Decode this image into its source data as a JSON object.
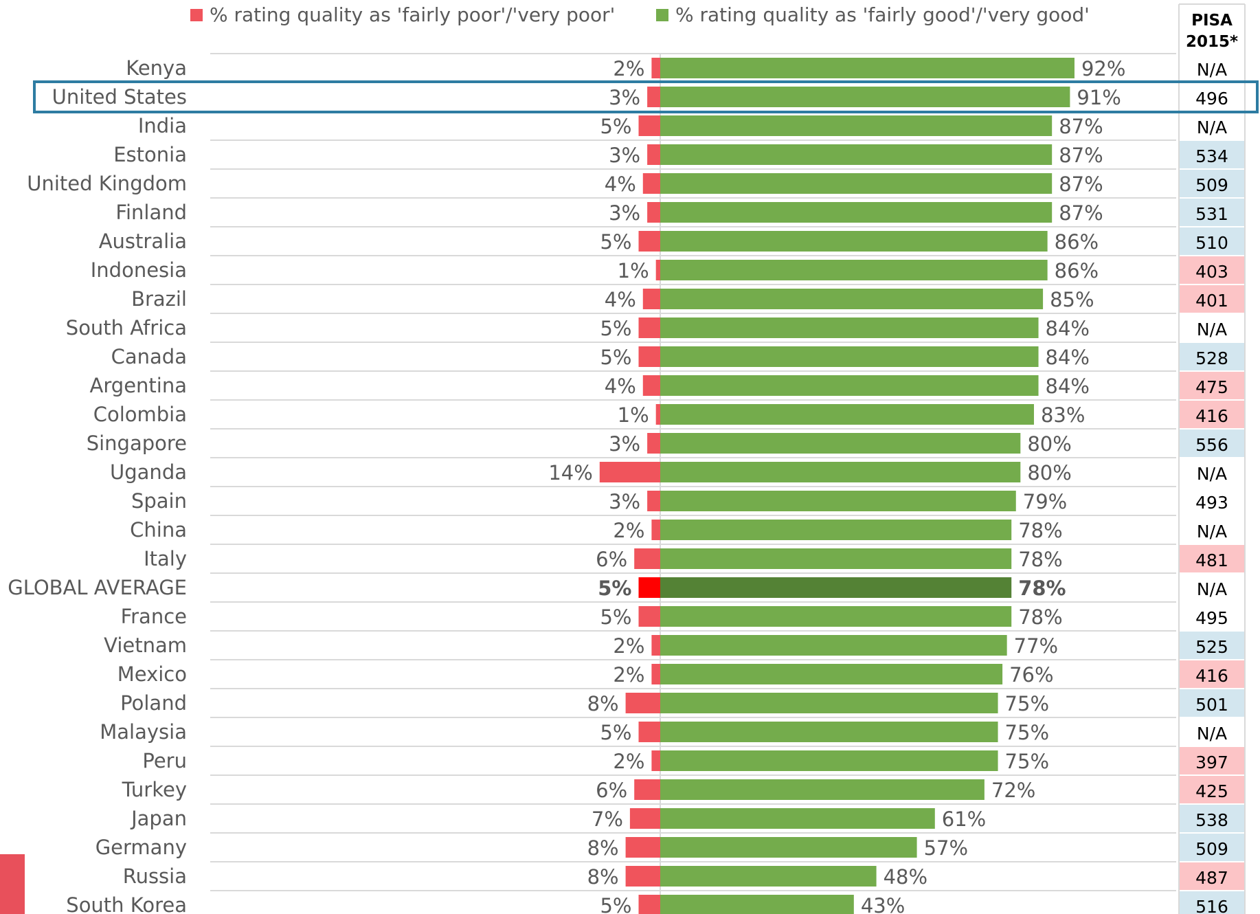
{
  "chart_data": {
    "type": "bar",
    "legend": {
      "position": "top",
      "poor_label": "% rating quality as 'fairly poor'/'very poor'",
      "good_label": "% rating quality as 'fairly good'/'very good'"
    },
    "pisa_header": [
      "PISA",
      "2015*"
    ],
    "highlighted_category": "United States",
    "bold_category": "GLOBAL AVERAGE",
    "categories": [
      "Kenya",
      "United States",
      "India",
      "Estonia",
      "United Kingdom",
      "Finland",
      "Australia",
      "Indonesia",
      "Brazil",
      "South Africa",
      "Canada",
      "Argentina",
      "Colombia",
      "Singapore",
      "Uganda",
      "Spain",
      "China",
      "Italy",
      "GLOBAL AVERAGE",
      "France",
      "Vietnam",
      "Mexico",
      "Poland",
      "Malaysia",
      "Peru",
      "Turkey",
      "Japan",
      "Germany",
      "Russia",
      "South Korea"
    ],
    "series": [
      {
        "name": "% rating quality as 'fairly poor'/'very poor'",
        "values": [
          2,
          3,
          5,
          3,
          4,
          3,
          5,
          1,
          4,
          5,
          5,
          4,
          1,
          3,
          14,
          3,
          2,
          6,
          5,
          5,
          2,
          2,
          8,
          5,
          2,
          6,
          7,
          8,
          8,
          5
        ]
      },
      {
        "name": "% rating quality as 'fairly good'/'very good'",
        "values": [
          92,
          91,
          87,
          87,
          87,
          87,
          86,
          86,
          85,
          84,
          84,
          84,
          83,
          80,
          80,
          79,
          78,
          78,
          78,
          78,
          77,
          76,
          75,
          75,
          75,
          72,
          61,
          57,
          48,
          43
        ]
      }
    ],
    "value_labels": {
      "poor": [
        "2%",
        "3%",
        "5%",
        "3%",
        "4%",
        "3%",
        "5%",
        "1%",
        "4%",
        "5%",
        "5%",
        "4%",
        "1%",
        "3%",
        "14%",
        "3%",
        "2%",
        "6%",
        "5%",
        "5%",
        "2%",
        "2%",
        "8%",
        "5%",
        "2%",
        "6%",
        "7%",
        "8%",
        "8%",
        "5%"
      ],
      "good": [
        "92%",
        "91%",
        "87%",
        "87%",
        "87%",
        "87%",
        "86%",
        "86%",
        "85%",
        "84%",
        "84%",
        "84%",
        "83%",
        "80%",
        "80%",
        "79%",
        "78%",
        "78%",
        "78%",
        "78%",
        "77%",
        "76%",
        "75%",
        "75%",
        "75%",
        "72%",
        "61%",
        "57%",
        "48%",
        "43%"
      ]
    },
    "pisa_2015": [
      "N/A",
      "496",
      "N/A",
      "534",
      "509",
      "531",
      "510",
      "403",
      "401",
      "N/A",
      "528",
      "475",
      "416",
      "556",
      "N/A",
      "493",
      "N/A",
      "481",
      "N/A",
      "495",
      "525",
      "416",
      "501",
      "N/A",
      "397",
      "425",
      "538",
      "509",
      "487",
      "516"
    ],
    "pisa_status": [
      "none",
      "none",
      "none",
      "above",
      "above",
      "above",
      "above",
      "below",
      "below",
      "none",
      "above",
      "below",
      "below",
      "above",
      "none",
      "none",
      "none",
      "below",
      "none",
      "none",
      "above",
      "below",
      "above",
      "none",
      "below",
      "below",
      "above",
      "above",
      "below",
      "above"
    ],
    "colors": {
      "poor": "#f0545c",
      "poor_average": "#ff0000",
      "good": "#74ac4c",
      "good_average": "#548235",
      "pisa_above": "#d3e6ef",
      "pisa_below": "#fcc4c6",
      "highlight_box": "#2e7ca2",
      "grid": "#d9d9d9",
      "text": "#595959"
    }
  }
}
